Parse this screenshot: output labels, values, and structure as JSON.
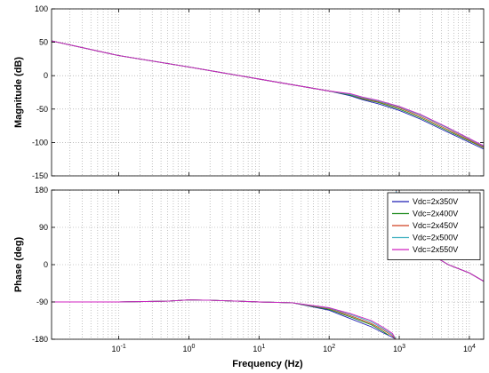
{
  "chart_data": [
    {
      "type": "line",
      "panel": "magnitude",
      "xlabel": "",
      "ylabel": "Magnitude (dB)",
      "xscale": "log",
      "xlim": [
        0.011,
        16000
      ],
      "ylim": [
        -150,
        100
      ],
      "yticks": [
        100,
        50,
        0,
        -50,
        -100,
        -150
      ],
      "xticks": [
        0.1,
        1,
        10,
        100,
        1000,
        10000
      ],
      "xtick_labels": [
        "10-1",
        "100",
        "101",
        "102",
        "103",
        "104"
      ],
      "grid": true,
      "series": [
        {
          "name": "Vdc=2x350V",
          "color": "#1f1fb4",
          "x": [
            0.011,
            0.1,
            1,
            10,
            100,
            200,
            300,
            500,
            1000,
            2000,
            5000,
            16000
          ],
          "y": [
            52,
            30,
            13,
            -5,
            -23,
            -30,
            -36,
            -42,
            -52,
            -65,
            -85,
            -110
          ]
        },
        {
          "name": "Vdc=2x400V",
          "color": "#1a8a1a",
          "x": [
            0.011,
            0.1,
            1,
            10,
            100,
            200,
            300,
            500,
            1000,
            2000,
            5000,
            16000
          ],
          "y": [
            52,
            30,
            13,
            -5,
            -23,
            -29,
            -35,
            -40,
            -50,
            -63,
            -83,
            -108
          ]
        },
        {
          "name": "Vdc=2x450V",
          "color": "#d04020",
          "x": [
            0.011,
            0.1,
            1,
            10,
            100,
            200,
            300,
            500,
            1000,
            2000,
            5000,
            16000
          ],
          "y": [
            52,
            30,
            13,
            -5,
            -23,
            -28,
            -34,
            -39,
            -48,
            -61,
            -81,
            -107
          ]
        },
        {
          "name": "Vdc=2x500V",
          "color": "#3fb0c0",
          "x": [
            0.011,
            0.1,
            1,
            10,
            100,
            200,
            300,
            500,
            1000,
            2000,
            5000,
            16000
          ],
          "y": [
            52,
            30,
            13,
            -5,
            -23,
            -28,
            -33,
            -38,
            -47,
            -59,
            -79,
            -106
          ]
        },
        {
          "name": "Vdc=2x550V",
          "color": "#d020c0",
          "x": [
            0.011,
            0.1,
            1,
            10,
            100,
            200,
            300,
            500,
            1000,
            2000,
            5000,
            16000
          ],
          "y": [
            52,
            30,
            13,
            -5,
            -23,
            -27,
            -32,
            -37,
            -46,
            -58,
            -78,
            -105
          ]
        }
      ]
    },
    {
      "type": "line",
      "panel": "phase",
      "xlabel": "Frequency  (Hz)",
      "ylabel": "Phase (deg)",
      "xscale": "log",
      "xlim": [
        0.011,
        16000
      ],
      "ylim": [
        -180,
        180
      ],
      "yticks": [
        180,
        90,
        0,
        -90,
        -180
      ],
      "xticks": [
        0.1,
        1,
        10,
        100,
        1000,
        10000
      ],
      "xtick_labels": [
        "10-1",
        "100",
        "101",
        "102",
        "103",
        "104"
      ],
      "grid": true,
      "legend": "top-right",
      "series": [
        {
          "name": "Vdc=2x350V",
          "color": "#1f1fb4",
          "x": [
            0.011,
            0.1,
            0.5,
            1,
            2,
            5,
            10,
            30,
            100,
            200,
            400,
            600,
            800,
            900,
            905,
            950,
            1000,
            2000,
            5000,
            10000,
            16000
          ],
          "y": [
            -90,
            -90,
            -88,
            -85,
            -86,
            -88,
            -90,
            -92,
            -110,
            -130,
            -150,
            -165,
            -175,
            -180,
            180,
            120,
            100,
            40,
            0,
            -20,
            -40
          ]
        },
        {
          "name": "Vdc=2x400V",
          "color": "#1a8a1a",
          "x": [
            0.011,
            0.1,
            0.5,
            1,
            2,
            5,
            10,
            30,
            100,
            200,
            400,
            600,
            700,
            705,
            800,
            1000,
            2000,
            5000,
            10000,
            16000
          ],
          "y": [
            -90,
            -90,
            -88,
            -85,
            -86,
            -88,
            -90,
            -92,
            -108,
            -126,
            -145,
            -162,
            -170,
            170,
            130,
            100,
            40,
            0,
            -20,
            -40
          ]
        },
        {
          "name": "Vdc=2x450V",
          "color": "#d04020",
          "x": [
            0.011,
            0.1,
            0.5,
            1,
            2,
            5,
            10,
            30,
            100,
            200,
            400,
            600,
            800,
            900,
            905,
            950,
            1000,
            2000,
            5000,
            10000,
            16000
          ],
          "y": [
            -90,
            -90,
            -88,
            -85,
            -86,
            -88,
            -90,
            -92,
            -106,
            -123,
            -142,
            -158,
            -172,
            -180,
            180,
            120,
            100,
            40,
            0,
            -20,
            -40
          ]
        },
        {
          "name": "Vdc=2x500V",
          "color": "#3fb0c0",
          "x": [
            0.011,
            0.1,
            0.5,
            1,
            2,
            5,
            10,
            30,
            100,
            200,
            400,
            600,
            800,
            900,
            905,
            950,
            1000,
            2000,
            5000,
            10000,
            16000
          ],
          "y": [
            -90,
            -90,
            -88,
            -85,
            -86,
            -88,
            -90,
            -92,
            -105,
            -120,
            -138,
            -155,
            -169,
            -178,
            178,
            120,
            100,
            40,
            0,
            -20,
            -40
          ]
        },
        {
          "name": "Vdc=2x550V",
          "color": "#d020c0",
          "x": [
            0.011,
            0.1,
            0.5,
            1,
            2,
            5,
            10,
            30,
            100,
            200,
            400,
            600,
            800,
            850,
            855,
            950,
            1000,
            2000,
            5000,
            10000,
            16000
          ],
          "y": [
            -90,
            -90,
            -88,
            -85,
            -86,
            -88,
            -90,
            -92,
            -104,
            -118,
            -135,
            -152,
            -166,
            -174,
            174,
            120,
            100,
            40,
            0,
            -20,
            -40
          ]
        }
      ]
    }
  ]
}
